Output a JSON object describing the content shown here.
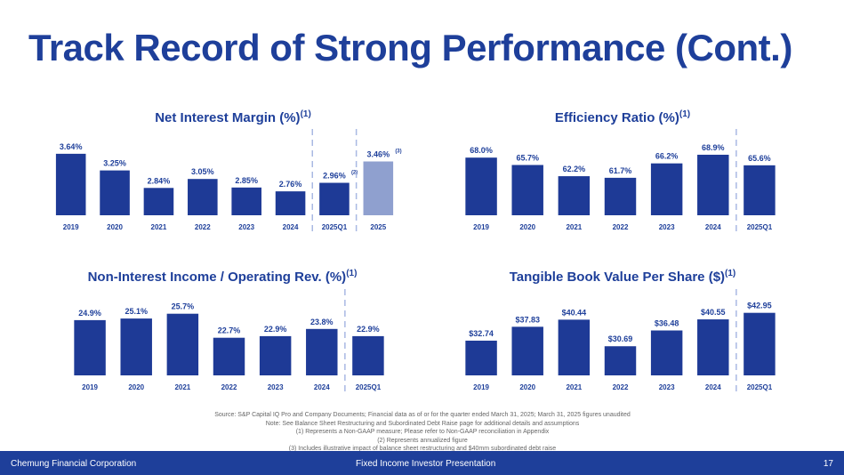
{
  "page": {
    "title": "Track Record of Strong Performance (Cont.)",
    "footer_left": "Chemung Financial Corporation",
    "footer_center": "Fixed Income Investor Presentation",
    "page_number": "17"
  },
  "footnotes": [
    "Source: S&P Capital IQ Pro and Company Documents; Financial data as of or for the quarter ended March 31, 2025; March 31, 2025 figures unaudited",
    "Note: See Balance Sheet Restructuring and Subordinated Debt Raise page for additional details and assumptions",
    "(1)      Represents a Non-GAAP measure; Please refer to Non-GAAP reconciliation in Appendix",
    "(2)      Represents annualized figure",
    "(3)      Includes illustrative impact of balance sheet restructuring and $40mm subordinated debt raise"
  ],
  "colors": {
    "bar": "#1e3a96",
    "bar_light": "#8fa0cf",
    "divider": "#a9b9e3",
    "title": "#1e3f9a"
  },
  "chart_data": [
    {
      "type": "bar",
      "title": "Net Interest Margin (%)",
      "title_sup": "(1)",
      "categories": [
        "2019",
        "2020",
        "2021",
        "2022",
        "2023",
        "2024",
        "2025Q1",
        "2025"
      ],
      "values": [
        3.64,
        3.25,
        2.84,
        3.05,
        2.85,
        2.76,
        2.96,
        3.46
      ],
      "labels": [
        "3.64%",
        "3.25%",
        "2.84%",
        "3.05%",
        "2.85%",
        "2.76%",
        "2.96%",
        "3.46%"
      ],
      "label_sups": [
        "",
        "",
        "",
        "",
        "",
        "",
        "(2)",
        "(3)"
      ],
      "highlight_index": 7,
      "dividers_after": [
        5,
        6
      ],
      "ylim": [
        2.2,
        3.7
      ]
    },
    {
      "type": "bar",
      "title": "Efficiency Ratio (%)",
      "title_sup": "(1)",
      "categories": [
        "2019",
        "2020",
        "2021",
        "2022",
        "2023",
        "2024",
        "2025Q1"
      ],
      "values": [
        68.0,
        65.7,
        62.2,
        61.7,
        66.2,
        68.9,
        65.6
      ],
      "labels": [
        "68.0%",
        "65.7%",
        "62.2%",
        "61.7%",
        "66.2%",
        "68.9%",
        "65.6%"
      ],
      "dividers_after": [
        5
      ],
      "ylim": [
        50,
        70
      ]
    },
    {
      "type": "bar",
      "title": "Non-Interest Income / Operating Rev.  (%)",
      "title_sup": "(1)",
      "categories": [
        "2019",
        "2020",
        "2021",
        "2022",
        "2023",
        "2024",
        "2025Q1"
      ],
      "values": [
        24.9,
        25.1,
        25.7,
        22.7,
        22.9,
        23.8,
        22.9
      ],
      "labels": [
        "24.9%",
        "25.1%",
        "25.7%",
        "22.7%",
        "22.9%",
        "23.8%",
        "22.9%"
      ],
      "dividers_after": [
        5
      ],
      "ylim": [
        18,
        26
      ]
    },
    {
      "type": "bar",
      "title": "Tangible Book Value Per Share ($)",
      "title_sup": "(1)",
      "categories": [
        "2019",
        "2020",
        "2021",
        "2022",
        "2023",
        "2024",
        "2025Q1"
      ],
      "values": [
        32.74,
        37.83,
        40.44,
        30.69,
        36.48,
        40.55,
        42.95
      ],
      "labels": [
        "$32.74",
        "$37.83",
        "$40.44",
        "$30.69",
        "$36.48",
        "$40.55",
        "$42.95"
      ],
      "dividers_after": [
        5
      ],
      "ylim": [
        20,
        43.5
      ]
    }
  ]
}
